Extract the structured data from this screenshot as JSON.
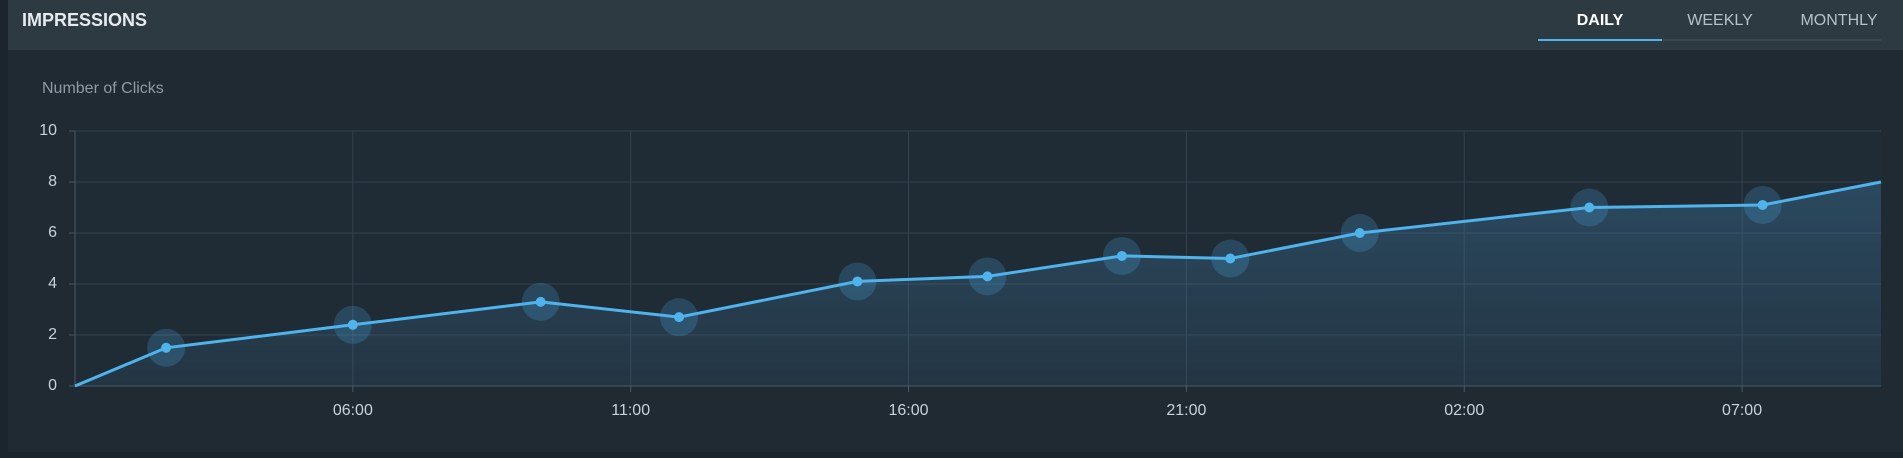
{
  "header": {
    "title": "IMPRESSIONS",
    "tabs": [
      "DAILY",
      "WEEKLY",
      "MONTHLY"
    ],
    "active_tab": "DAILY"
  },
  "chart_data": {
    "type": "line",
    "y_label": "Number of Clicks",
    "x": [
      0,
      1.64,
      5,
      8.38,
      10.87,
      14.08,
      16.42,
      18.84,
      20.79,
      23.12,
      27.25,
      30.37,
      32.5
    ],
    "series": [
      {
        "name": "Number of Clicks",
        "color": "#4fb3ec",
        "values": [
          0,
          1.5,
          2.4,
          3.3,
          2.7,
          4.1,
          4.3,
          5.1,
          5.0,
          6.0,
          7.0,
          7.1,
          8.0
        ]
      }
    ],
    "xlim": [
      0,
      32.5
    ],
    "xticks": [
      {
        "value": 5,
        "label": "06:00"
      },
      {
        "value": 10,
        "label": "11:00"
      },
      {
        "value": 15,
        "label": "16:00"
      },
      {
        "value": 20,
        "label": "21:00"
      },
      {
        "value": 25,
        "label": "02:00"
      },
      {
        "value": 30,
        "label": "07:00"
      }
    ],
    "ylim": [
      0,
      10
    ],
    "yticks": [
      0,
      2,
      4,
      6,
      8,
      10
    ],
    "grid": true
  }
}
